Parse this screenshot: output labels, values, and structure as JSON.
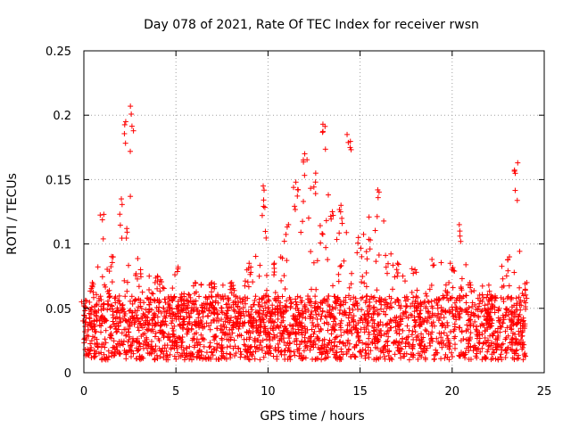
{
  "chart_data": {
    "type": "scatter",
    "title": "Day 078 of 2021, Rate Of TEC Index for receiver rwsn",
    "xlabel": "GPS time / hours",
    "ylabel": "ROTI / TECUs",
    "xlim": [
      0,
      25
    ],
    "ylim": [
      0,
      0.25
    ],
    "xticks": [
      "0",
      "5",
      "10",
      "15",
      "20",
      "25"
    ],
    "yticks": [
      "0",
      "0.05",
      "0.1",
      "0.15",
      "0.2",
      "0.25"
    ],
    "grid": true,
    "marker": "+",
    "series_color": "#ff0000",
    "series": [
      {
        "name": "ROTI",
        "envelope": [
          {
            "x": 0.0,
            "y": 0.055
          },
          {
            "x": 0.5,
            "y": 0.07
          },
          {
            "x": 1.0,
            "y": 0.123
          },
          {
            "x": 1.5,
            "y": 0.09
          },
          {
            "x": 2.0,
            "y": 0.135
          },
          {
            "x": 2.3,
            "y": 0.195
          },
          {
            "x": 2.6,
            "y": 0.207
          },
          {
            "x": 3.0,
            "y": 0.08
          },
          {
            "x": 4.0,
            "y": 0.075
          },
          {
            "x": 5.0,
            "y": 0.082
          },
          {
            "x": 6.0,
            "y": 0.07
          },
          {
            "x": 7.0,
            "y": 0.07
          },
          {
            "x": 8.0,
            "y": 0.07
          },
          {
            "x": 9.0,
            "y": 0.085
          },
          {
            "x": 9.8,
            "y": 0.145
          },
          {
            "x": 10.3,
            "y": 0.085
          },
          {
            "x": 11.0,
            "y": 0.115
          },
          {
            "x": 11.5,
            "y": 0.148
          },
          {
            "x": 12.0,
            "y": 0.17
          },
          {
            "x": 12.5,
            "y": 0.155
          },
          {
            "x": 13.0,
            "y": 0.193
          },
          {
            "x": 13.5,
            "y": 0.125
          },
          {
            "x": 14.0,
            "y": 0.13
          },
          {
            "x": 14.4,
            "y": 0.185
          },
          {
            "x": 15.0,
            "y": 0.105
          },
          {
            "x": 16.0,
            "y": 0.142
          },
          {
            "x": 17.0,
            "y": 0.085
          },
          {
            "x": 18.0,
            "y": 0.08
          },
          {
            "x": 19.0,
            "y": 0.088
          },
          {
            "x": 20.0,
            "y": 0.085
          },
          {
            "x": 20.5,
            "y": 0.115
          },
          {
            "x": 21.0,
            "y": 0.07
          },
          {
            "x": 22.0,
            "y": 0.068
          },
          {
            "x": 23.0,
            "y": 0.09
          },
          {
            "x": 23.5,
            "y": 0.163
          },
          {
            "x": 24.0,
            "y": 0.07
          }
        ],
        "typical_range": [
          0.01,
          0.06
        ]
      }
    ]
  }
}
